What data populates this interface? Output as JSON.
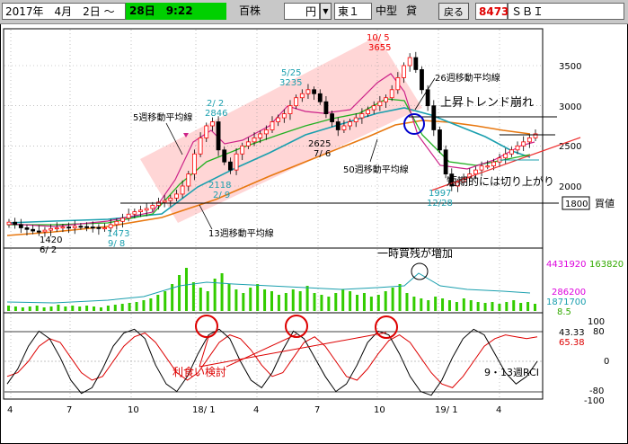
{
  "toolbar": {
    "date_range": "2017年　4月　2日 ～",
    "end_date": "28日　9:22",
    "unit": "百株",
    "currency": "円",
    "market": "東１",
    "size": "中型",
    "margin": "貸",
    "back_button": "戻る",
    "code": "8473",
    "name": "ＳＢＩ"
  },
  "price_panel": {
    "y_ticks": [
      "3500",
      "3000",
      "2500",
      "2000"
    ],
    "trend_label": "上昇トレンド崩れ",
    "short_term_label": "短期的には切り上がり",
    "ma5_label": "5週移動平均線",
    "ma13_label": "13週移動平均線",
    "ma26_label": "26週移動平均線",
    "ma50_label": "50週移動平均線",
    "value_box": "1800",
    "value_box_label": "買値",
    "annotations": [
      {
        "date": "10/ 5",
        "value": "3655"
      },
      {
        "date": "5/25",
        "value": "3235"
      },
      {
        "date": "2/ 2",
        "value": "2846"
      },
      {
        "date": "7/ 6",
        "value": "2625"
      },
      {
        "date": "2/ 9",
        "value": "2118"
      },
      {
        "date": "9/ 8",
        "value": "1473"
      },
      {
        "date": "6/ 2",
        "value": "1420"
      },
      {
        "date": "12/28",
        "value": "1997"
      }
    ]
  },
  "volume_panel": {
    "annotation": "一時買残が増加",
    "values": [
      "4431920",
      "163820",
      "286200",
      "1871700",
      "8.5"
    ]
  },
  "rci_panel": {
    "label": "9・13週RCI",
    "profit_label": "利食い検討",
    "y_ticks": [
      "100",
      "80",
      "0",
      "-80",
      "-100"
    ],
    "value1": "43.33",
    "value2": "65.38"
  },
  "x_axis": [
    "4",
    "7",
    "10",
    "18/ 1",
    "4",
    "7",
    "10",
    "19/ 1",
    "4"
  ],
  "colors": {
    "candle_up": "#ff0000",
    "candle_down": "#000000",
    "ma5": "#cc2288",
    "ma13": "#22b022",
    "ma26": "#1a9fae",
    "ma50": "#e87810",
    "volume": "#33cc00",
    "rci_fast": "#000000",
    "rci_slow": "#dd0000"
  },
  "chart_data": {
    "type": "candlestick",
    "x_categories": [
      "2017/4",
      "2017/7",
      "2017/10",
      "2018/1",
      "2018/4",
      "2018/7",
      "2018/10",
      "2019/1",
      "2019/4"
    ],
    "price_ylim": [
      1250,
      3750
    ],
    "highlights": [
      {
        "date": "2017/6/2",
        "value": 1420
      },
      {
        "date": "2017/9/8",
        "value": 1473
      },
      {
        "date": "2018/2/2",
        "value": 2846
      },
      {
        "date": "2018/2/9",
        "value": 2118
      },
      {
        "date": "2018/5/25",
        "value": 3235
      },
      {
        "date": "2018/7/6",
        "value": 2625
      },
      {
        "date": "2018/10/5",
        "value": 3655
      },
      {
        "date": "2018/12/28",
        "value": 1997
      }
    ],
    "buy_price": 1800,
    "close_series": [
      1550,
      1520,
      1480,
      1460,
      1440,
      1430,
      1450,
      1470,
      1480,
      1490,
      1480,
      1500,
      1495,
      1490,
      1485,
      1470,
      1480,
      1520,
      1560,
      1600,
      1650,
      1680,
      1700,
      1720,
      1760,
      1800,
      1820,
      1850,
      1900,
      2000,
      2150,
      2400,
      2600,
      2750,
      2800,
      2450,
      2300,
      2200,
      2400,
      2500,
      2550,
      2600,
      2650,
      2700,
      2800,
      2850,
      2900,
      3000,
      3100,
      3150,
      3200,
      3150,
      3050,
      2900,
      2800,
      2700,
      2750,
      2800,
      2850,
      2900,
      2950,
      3000,
      3050,
      3100,
      3200,
      3350,
      3500,
      3600,
      3450,
      3200,
      3000,
      2700,
      2450,
      2150,
      2000,
      2050,
      2100,
      2150,
      2200,
      2250,
      2250,
      2300,
      2350,
      2400,
      2450,
      2500,
      2550,
      2600,
      2650
    ],
    "rci_fast": [
      -60,
      -20,
      40,
      80,
      60,
      10,
      -50,
      -85,
      -70,
      -20,
      40,
      75,
      85,
      60,
      -10,
      -60,
      -80,
      -40,
      20,
      70,
      85,
      60,
      0,
      -50,
      -70,
      -30,
      30,
      80,
      60,
      10,
      -40,
      -80,
      -60,
      -10,
      50,
      80,
      70,
      20,
      -40,
      -80,
      -90,
      -50,
      10,
      60,
      85,
      70,
      20,
      -30,
      -60,
      -40,
      0
    ],
    "rci_slow": [
      -40,
      -30,
      0,
      40,
      60,
      50,
      10,
      -30,
      -50,
      -40,
      0,
      40,
      65,
      75,
      50,
      10,
      -30,
      -50,
      -30,
      10,
      50,
      70,
      60,
      30,
      -10,
      -40,
      -30,
      10,
      50,
      65,
      40,
      0,
      -40,
      -50,
      -20,
      20,
      55,
      70,
      50,
      10,
      -30,
      -60,
      -70,
      -40,
      0,
      40,
      60,
      70,
      65,
      60,
      65
    ],
    "rci_ylim": [
      -100,
      100
    ]
  }
}
